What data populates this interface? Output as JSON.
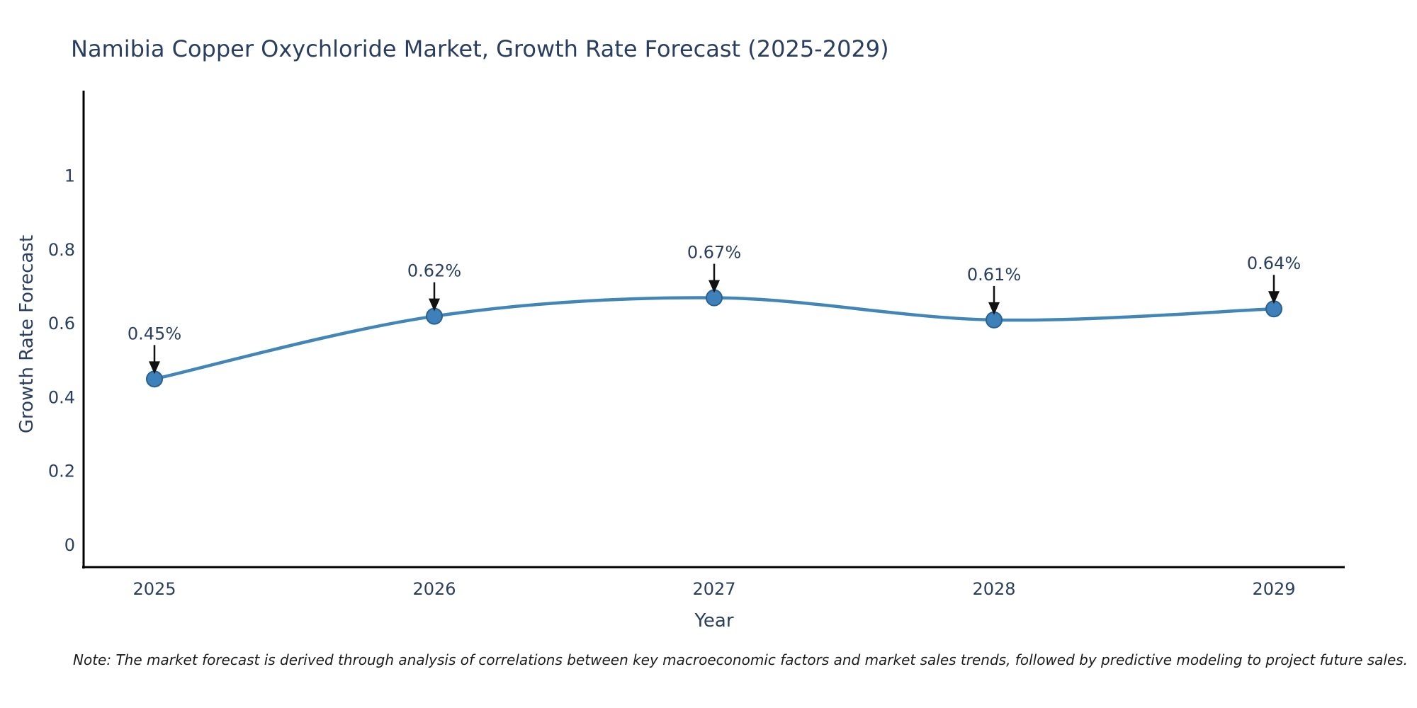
{
  "title": "Namibia Copper Oxychloride Market, Growth Rate Forecast (2025-2029)",
  "note": "Note: The market forecast is derived through analysis of correlations between key macroeconomic factors and market sales trends, followed by predictive modeling to project future sales.",
  "chart_data": {
    "type": "line",
    "title": "Namibia Copper Oxychloride Market, Growth Rate Forecast (2025-2029)",
    "x": [
      "2025",
      "2026",
      "2027",
      "2028",
      "2029"
    ],
    "series": [
      {
        "name": "Growth Rate Forecast",
        "values": [
          0.45,
          0.62,
          0.67,
          0.61,
          0.64
        ]
      }
    ],
    "point_labels": [
      "0.45%",
      "0.62%",
      "0.67%",
      "0.61%",
      "0.64%"
    ],
    "xlabel": "Year",
    "ylabel": "Growth Rate Forecast",
    "yticks": [
      "0",
      "0.2",
      "0.4",
      "0.6",
      "0.8",
      "1"
    ],
    "ytick_values": [
      0,
      0.2,
      0.4,
      0.6,
      0.8,
      1
    ],
    "ylim": [
      -0.06,
      1.23
    ],
    "grid": false,
    "legend_position": "none",
    "line_style": "smooth-spline",
    "annotation_style": "value-label-with-down-arrow",
    "colors": {
      "line": "#4286b8",
      "marker_fill": "#3d80ba",
      "marker_edge": "#2a628f",
      "arrow": "#111111",
      "text": "#2a3f5f",
      "axis": "#000000",
      "background": "#ffffff"
    }
  }
}
